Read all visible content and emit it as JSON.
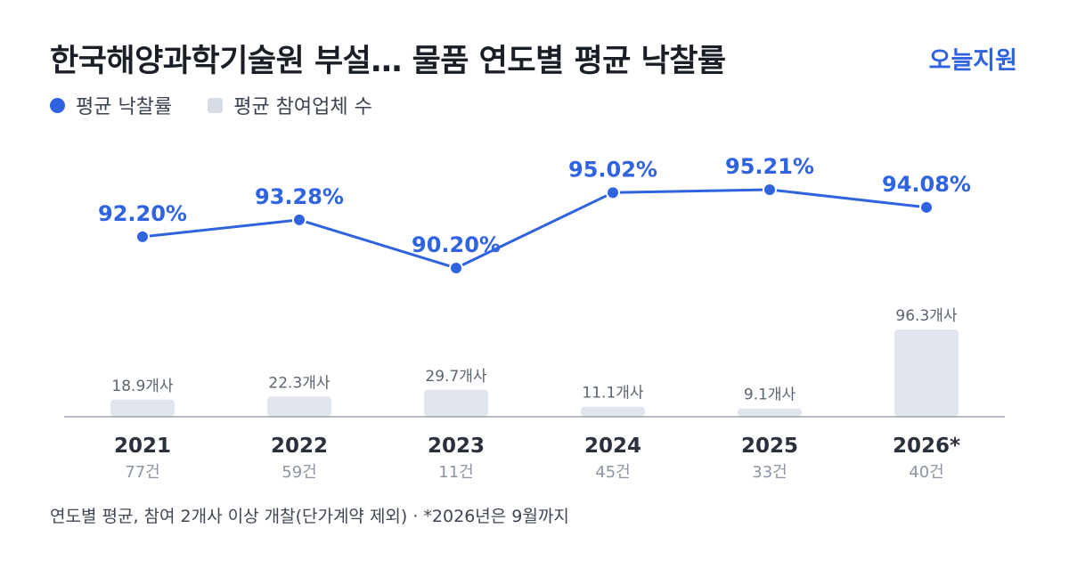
{
  "header": {
    "title": "한국해양과학기술원 부설… 물품 연도별 평균 낙찰률",
    "brand": "오늘지원"
  },
  "legend": {
    "rate_label": "평균 낙찰률",
    "bidders_label": "평균 참여업체 수"
  },
  "chart_data": {
    "type": "line",
    "categories": [
      "2021",
      "2022",
      "2023",
      "2024",
      "2025",
      "2026*"
    ],
    "series": [
      {
        "name": "평균 낙찰률",
        "type": "line",
        "values": [
          92.2,
          93.28,
          90.2,
          95.02,
          95.21,
          94.08
        ],
        "labels": [
          "92.20%",
          "93.28%",
          "90.20%",
          "95.02%",
          "95.21%",
          "94.08%"
        ],
        "color": "#2f63e0"
      },
      {
        "name": "평균 참여업체 수",
        "type": "bar",
        "values": [
          18.9,
          22.3,
          29.7,
          11.1,
          9.1,
          96.3
        ],
        "labels": [
          "18.9개사",
          "22.3개사",
          "29.7개사",
          "11.1개사",
          "9.1개사",
          "96.3개사"
        ],
        "color": "#e1e6ee"
      }
    ],
    "counts": [
      "77건",
      "59건",
      "11건",
      "45건",
      "33건",
      "40건"
    ],
    "grid": false,
    "legend_position": "top-left"
  },
  "footer": {
    "note": "연도별 평균, 참여 2개사 이상 개찰(단가계약 제외) · *2026년은 9월까지"
  }
}
